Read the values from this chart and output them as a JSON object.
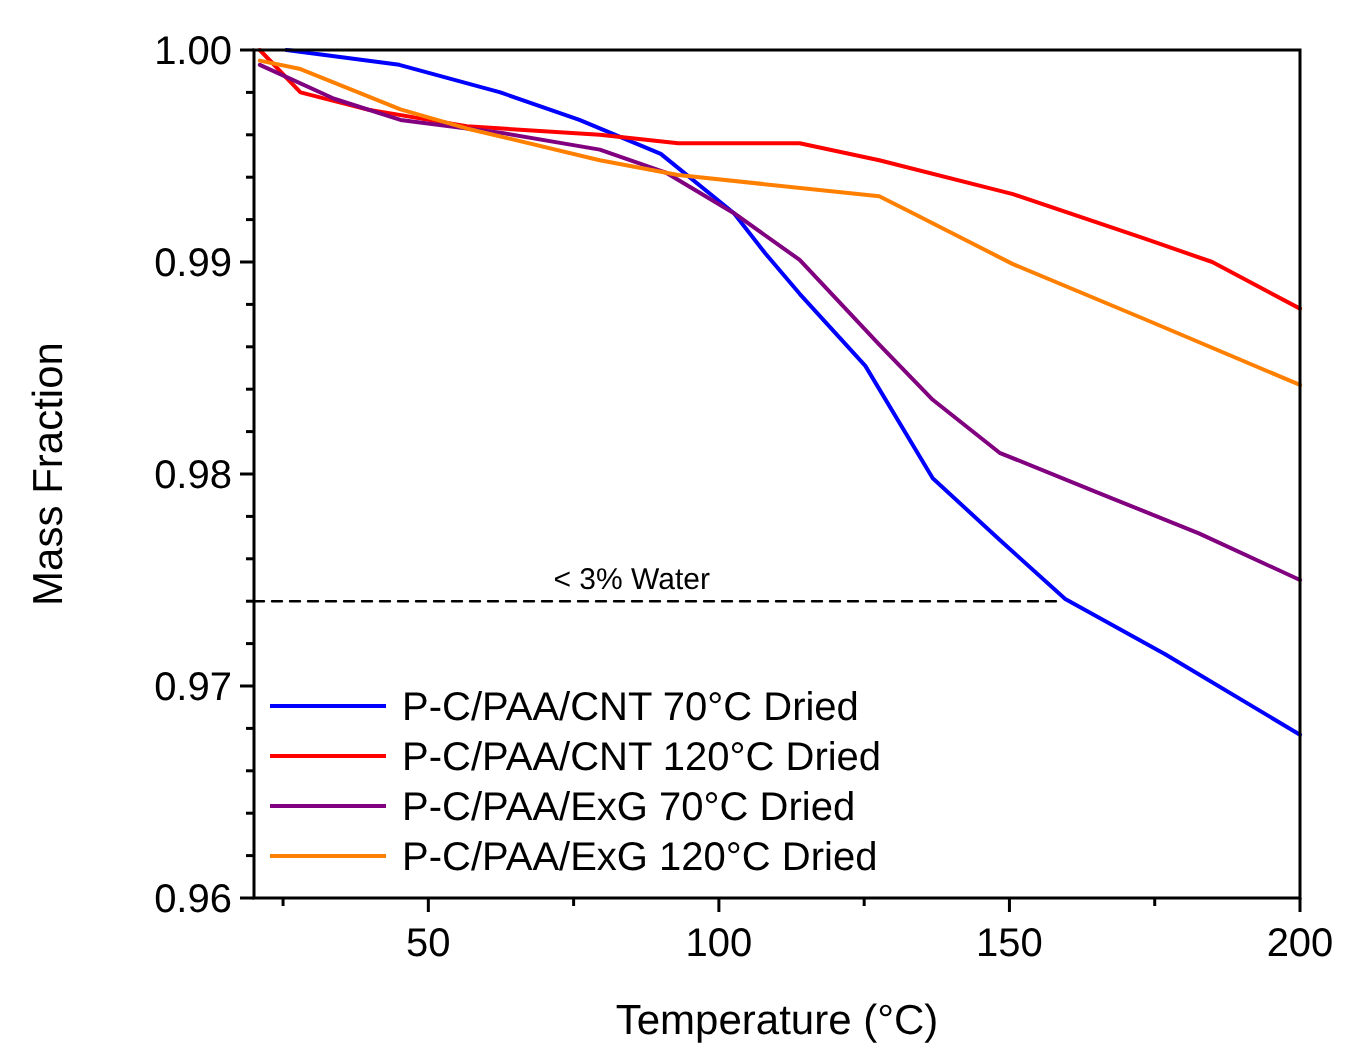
{
  "chart_data": {
    "type": "line",
    "xlabel": "Temperature (°C)",
    "ylabel": "Mass Fraction",
    "xlim": [
      20,
      200
    ],
    "ylim": [
      0.96,
      1.0
    ],
    "xticks": [
      {
        "value": 25,
        "label": null
      },
      50,
      {
        "value": 75,
        "label": null
      },
      100,
      {
        "value": 125,
        "label": null
      },
      150,
      {
        "value": 175,
        "label": null
      },
      200
    ],
    "yticks": [
      {
        "value": 0.96,
        "label": "0.96"
      },
      {
        "value": 0.962,
        "label": null
      },
      {
        "value": 0.964,
        "label": null
      },
      {
        "value": 0.966,
        "label": null
      },
      {
        "value": 0.968,
        "label": null
      },
      {
        "value": 0.97,
        "label": "0.97"
      },
      {
        "value": 0.972,
        "label": null
      },
      {
        "value": 0.974,
        "label": null
      },
      {
        "value": 0.976,
        "label": null
      },
      {
        "value": 0.978,
        "label": null
      },
      {
        "value": 0.98,
        "label": "0.98"
      },
      {
        "value": 0.982,
        "label": null
      },
      {
        "value": 0.984,
        "label": null
      },
      {
        "value": 0.986,
        "label": null
      },
      {
        "value": 0.988,
        "label": null
      },
      {
        "value": 0.99,
        "label": "0.99"
      },
      {
        "value": 0.992,
        "label": null
      },
      {
        "value": 0.994,
        "label": null
      },
      {
        "value": 0.996,
        "label": null
      },
      {
        "value": 0.998,
        "label": null
      },
      {
        "value": 1.0,
        "label": "1.00"
      }
    ],
    "grid": false,
    "legend": "bottom left",
    "line_style": "solid",
    "marker": "none",
    "annotations": [
      {
        "text": "< 3% Water",
        "x": 85,
        "y": 0.974
      }
    ],
    "series": [
      {
        "name": "P-C/PAA/CNT 70°C Dried",
        "color": "#0000ff",
        "x": [
          25.6,
          45,
          62.4,
          76,
          90,
          102.6,
          108,
          113.9,
          125.2,
          136.8,
          148.3,
          159.6,
          176.8,
          200
        ],
        "values": [
          1.0,
          0.9993,
          0.998,
          0.9967,
          0.9951,
          0.9923,
          0.9904,
          0.9885,
          0.9851,
          0.9798,
          0.9769,
          0.9741,
          0.9715,
          0.9677
        ]
      },
      {
        "name": "P-C/PAA/CNT 120°C Dried",
        "color": "#ff0000",
        "x": [
          21,
          28,
          39.4,
          56.6,
          79.5,
          93,
          113.9,
          127.6,
          150.6,
          173.3,
          184.9,
          200
        ],
        "values": [
          1.0,
          0.998,
          0.9972,
          0.9964,
          0.996,
          0.9956,
          0.9956,
          0.9948,
          0.9932,
          0.9911,
          0.99,
          0.9878
        ]
      },
      {
        "name": "P-C/PAA/ExG 70°C Dried",
        "color": "#800080",
        "x": [
          21,
          33.8,
          45.2,
          62.4,
          79.5,
          91,
          102.6,
          113.9,
          127.6,
          136.8,
          148.3,
          165.4,
          182.6,
          200
        ],
        "values": [
          0.9993,
          0.9977,
          0.9967,
          0.9961,
          0.9953,
          0.9942,
          0.9923,
          0.9901,
          0.9861,
          0.9835,
          0.981,
          0.9791,
          0.9772,
          0.975
        ]
      },
      {
        "name": "P-C/PAA/ExG 120°C Dried",
        "color": "#ff8000",
        "x": [
          21,
          28,
          45.2,
          56.6,
          79.5,
          93,
          127.6,
          133.4,
          150.6,
          173.3,
          200
        ],
        "values": [
          0.9995,
          0.9991,
          0.9972,
          0.9963,
          0.9948,
          0.9941,
          0.9931,
          0.9923,
          0.9899,
          0.9873,
          0.9842
        ]
      },
      {
        "color": "#000000",
        "line_style": "dashed",
        "x": [
          20,
          158
        ],
        "values": [
          0.974,
          0.974
        ]
      }
    ]
  }
}
